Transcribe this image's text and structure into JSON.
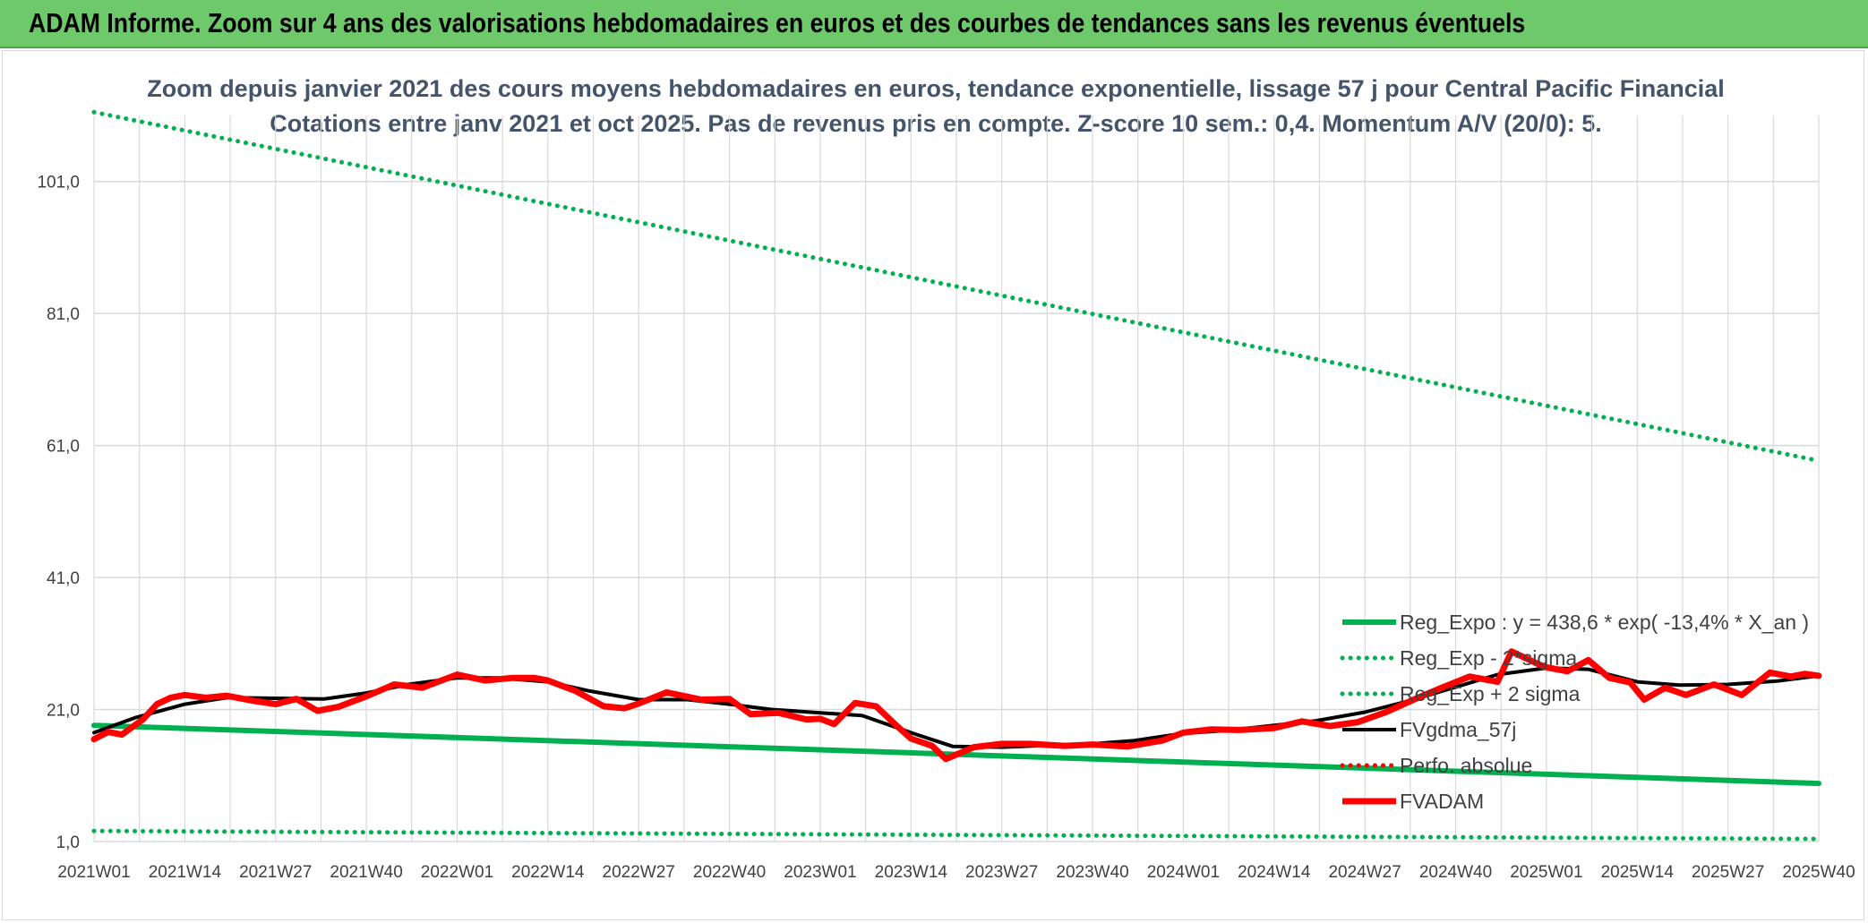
{
  "header": {
    "title": "ADAM Informe. Zoom sur 4 ans des valorisations hebdomadaires en euros et des courbes de tendances sans les revenus éventuels"
  },
  "colors": {
    "header_bg": "#6dc96a",
    "green": "#00b050",
    "red": "#ff0000",
    "black": "#000000",
    "grid": "#d9d9d9",
    "title_text": "#44546a"
  },
  "chart_data": {
    "type": "line",
    "title": "Zoom depuis janvier 2021 des cours moyens hebdomadaires en euros, tendance exponentielle, lissage 57 j pour Central Pacific Financial",
    "subtitle": "Cotations entre janv 2021 et oct 2025. Pas de revenus pris en compte. Z-score 10 sem.: 0,4. Momentum A/V (20/0): 5.",
    "xlabel": "",
    "ylabel": "",
    "grid": true,
    "legend_position": "bottom-right",
    "ylim": [
      1,
      111
    ],
    "yticks": [
      "1,0",
      "21,0",
      "41,0",
      "61,0",
      "81,0",
      "101,0"
    ],
    "x_tick_labels": [
      "2021W01",
      "2021W14",
      "2021W27",
      "2021W40",
      "2022W01",
      "2022W14",
      "2022W27",
      "2022W40",
      "2023W01",
      "2023W14",
      "2023W27",
      "2023W40",
      "2024W01",
      "2024W14",
      "2024W27",
      "2024W40",
      "2025W01",
      "2025W14",
      "2025W27",
      "2025W40"
    ],
    "series": [
      {
        "name": "Reg_Expo : y = 438,6 * exp( -13,4% *  X_an )",
        "style": "solid-thick",
        "color": "#00b050",
        "x": [
          "2021W01",
          "2025W40"
        ],
        "values": [
          18.6,
          9.8
        ]
      },
      {
        "name": "Reg_Exp - 2*sigma",
        "style": "dotted",
        "color": "#00b050",
        "x": [
          "2021W01",
          "2025W40"
        ],
        "values": [
          2.6,
          1.4
        ]
      },
      {
        "name": "Reg_Exp + 2 sigma",
        "style": "dotted",
        "color": "#00b050",
        "x": [
          "2021W01",
          "2025W40"
        ],
        "values": [
          111.5,
          58.7
        ]
      },
      {
        "name": "FVgdma_57j",
        "style": "solid",
        "color": "#000000",
        "x": [
          "2021W01",
          "2021W07",
          "2021W14",
          "2021W20",
          "2021W27",
          "2021W34",
          "2021W40",
          "2021W46",
          "2022W01",
          "2022W07",
          "2022W14",
          "2022W20",
          "2022W27",
          "2022W34",
          "2022W40",
          "2022W46",
          "2023W01",
          "2023W07",
          "2023W14",
          "2023W20",
          "2023W27",
          "2023W34",
          "2023W40",
          "2023W46",
          "2024W01",
          "2024W07",
          "2024W14",
          "2024W20",
          "2024W27",
          "2024W34",
          "2024W40",
          "2024W46",
          "2025W01",
          "2025W07",
          "2025W14",
          "2025W20",
          "2025W27",
          "2025W34",
          "2025W40"
        ],
        "values": [
          17.5,
          19.8,
          21.8,
          22.8,
          22.7,
          22.6,
          23.5,
          24.8,
          25.8,
          25.8,
          25.2,
          23.8,
          22.5,
          22.5,
          21.8,
          21.0,
          20.5,
          20.1,
          17.5,
          15.4,
          15.3,
          15.6,
          15.8,
          16.3,
          17.4,
          17.8,
          18.6,
          19.3,
          20.6,
          22.5,
          24.4,
          26.3,
          27.3,
          27.1,
          25.2,
          24.7,
          24.8,
          25.3,
          26.1
        ]
      },
      {
        "name": "Perfo. absolue",
        "style": "dotted",
        "color": "#ff0000",
        "x": [],
        "values": []
      },
      {
        "name": "FVADAM",
        "style": "solid-thick",
        "color": "#ff0000",
        "x": [
          "2021W01",
          "2021W03",
          "2021W05",
          "2021W08",
          "2021W10",
          "2021W12",
          "2021W14",
          "2021W17",
          "2021W20",
          "2021W24",
          "2021W27",
          "2021W30",
          "2021W33",
          "2021W36",
          "2021W40",
          "2021W44",
          "2021W48",
          "2021W51",
          "2022W01",
          "2022W05",
          "2022W09",
          "2022W12",
          "2022W14",
          "2022W18",
          "2022W22",
          "2022W25",
          "2022W27",
          "2022W31",
          "2022W36",
          "2022W40",
          "2022W43",
          "2022W47",
          "2022W51",
          "2023W01",
          "2023W03",
          "2023W06",
          "2023W09",
          "2023W12",
          "2023W14",
          "2023W17",
          "2023W19",
          "2023W23",
          "2023W27",
          "2023W31",
          "2023W36",
          "2023W40",
          "2023W45",
          "2023W50",
          "2024W01",
          "2024W05",
          "2024W09",
          "2024W14",
          "2024W18",
          "2024W22",
          "2024W26",
          "2024W30",
          "2024W34",
          "2024W38",
          "2024W42",
          "2024W46",
          "2024W48",
          "2024W52",
          "2025W01",
          "2025W04",
          "2025W07",
          "2025W10",
          "2025W13",
          "2025W15",
          "2025W18",
          "2025W21",
          "2025W25",
          "2025W29",
          "2025W33",
          "2025W36",
          "2025W38",
          "2025W40"
        ],
        "values": [
          16.5,
          17.6,
          17.2,
          19.5,
          21.8,
          22.8,
          23.2,
          22.8,
          23.1,
          22.3,
          21.8,
          22.6,
          20.8,
          21.4,
          23.0,
          24.8,
          24.3,
          25.5,
          26.3,
          25.4,
          25.8,
          25.8,
          25.4,
          23.8,
          21.5,
          21.2,
          21.9,
          23.6,
          22.5,
          22.6,
          20.3,
          20.5,
          19.5,
          19.6,
          18.8,
          22.0,
          21.5,
          18.5,
          16.6,
          15.5,
          13.5,
          15.3,
          15.8,
          15.8,
          15.5,
          15.7,
          15.4,
          16.3,
          17.5,
          18.0,
          17.9,
          18.2,
          19.2,
          18.5,
          19.1,
          20.6,
          22.5,
          24.3,
          26.0,
          25.2,
          29.8,
          27.8,
          27.4,
          26.8,
          28.5,
          25.8,
          25.1,
          22.5,
          24.3,
          23.2,
          24.8,
          23.2,
          26.6,
          26.0,
          26.4,
          26.1
        ]
      }
    ]
  }
}
